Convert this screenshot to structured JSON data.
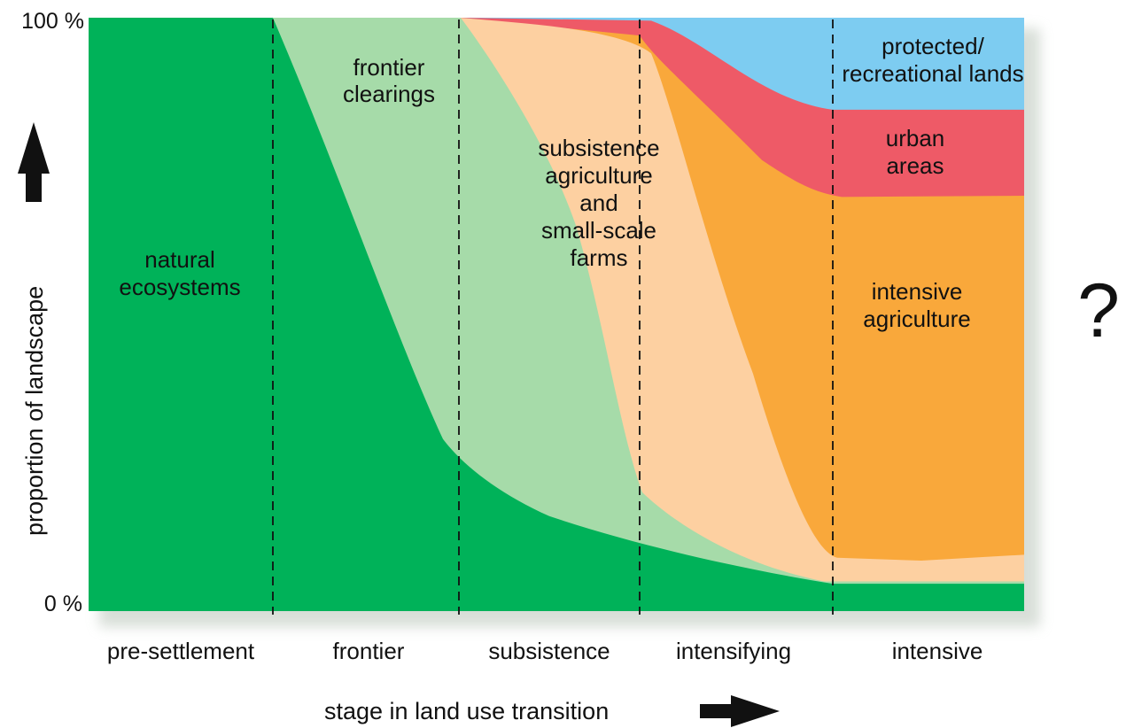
{
  "chart_data": {
    "type": "area",
    "x": [
      "pre-settlement",
      "frontier",
      "subsistence",
      "intensifying",
      "intensive",
      "intensive (end)"
    ],
    "ylim": [
      0,
      100
    ],
    "y_ticks": [
      "0 %",
      "100 %"
    ],
    "ylabel": "proportion of landscape",
    "xlabel": "stage in land use transition",
    "stages": [
      "pre-settlement",
      "frontier",
      "subsistence",
      "intensifying",
      "intensive"
    ],
    "series": [
      {
        "name": "natural ecosystems",
        "values": [
          100,
          100,
          26,
          13,
          5,
          5
        ]
      },
      {
        "name": "frontier clearings",
        "values": [
          0,
          0,
          74,
          12,
          0,
          0
        ]
      },
      {
        "name": "subsistence agriculture and small-scale farms",
        "values": [
          0,
          0,
          0,
          70,
          9,
          5
        ]
      },
      {
        "name": "intensive agriculture",
        "values": [
          0,
          0,
          0,
          0,
          71,
          69
        ]
      },
      {
        "name": "urban areas",
        "values": [
          0,
          0,
          0,
          5,
          15,
          15
        ]
      },
      {
        "name": "protected/ recreational lands",
        "values": [
          0,
          0,
          0,
          0,
          0,
          6
        ]
      }
    ],
    "area_labels": {
      "natural": [
        "natural",
        "ecosystems"
      ],
      "frontier": [
        "frontier",
        "clearings"
      ],
      "subsistence": [
        "subsistence",
        "agriculture",
        "and",
        "small-scale",
        "farms"
      ],
      "intensive": [
        "intensive",
        "agriculture"
      ],
      "urban": [
        "urban",
        "areas"
      ],
      "protected": [
        "protected/",
        "recreational lands"
      ]
    },
    "annotation": "?",
    "colors": {
      "natural": "#00b259",
      "frontier": "#a6dba9",
      "subsistence": "#fdd0a1",
      "intensive": "#f9a83b",
      "urban": "#ee5a67",
      "protected": "#7dccf1"
    }
  }
}
